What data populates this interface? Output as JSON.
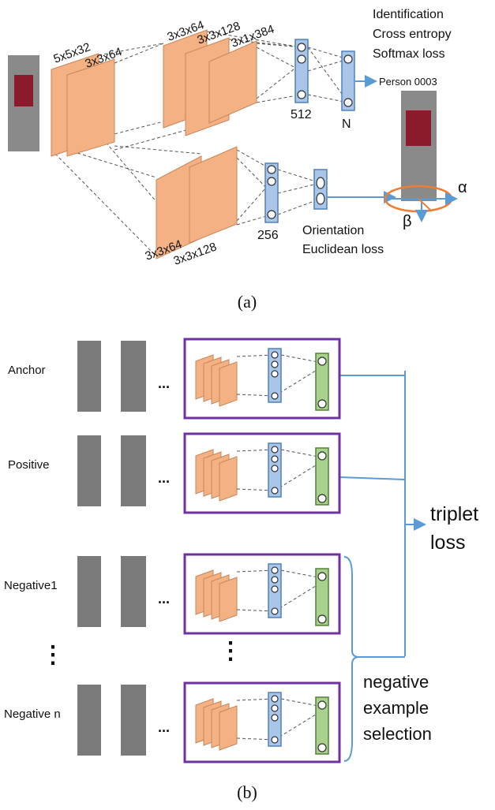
{
  "panel_a": {
    "conv_labels_top": [
      "5x5x32",
      "3x3x64",
      "3x3x64",
      "3x3x128",
      "3x1x384"
    ],
    "conv_labels_bottom": [
      "3x3x64",
      "3x3x128"
    ],
    "fc_labels": [
      "512",
      "N",
      "256"
    ],
    "identification": [
      "Identification",
      "Cross entropy",
      "Softmax loss"
    ],
    "person_label": "Person 0003",
    "angle_labels": [
      "α",
      "β"
    ],
    "orientation": [
      "Orientation",
      "Euclidean loss"
    ],
    "caption": "(a)"
  },
  "panel_b": {
    "rows": [
      {
        "label": "Anchor",
        "ellipsis": "..."
      },
      {
        "label": "Positive",
        "ellipsis": "..."
      },
      {
        "label": "Negative1",
        "ellipsis": "..."
      },
      {
        "label": "Negative n",
        "ellipsis": "..."
      }
    ],
    "vertical_ellipses": [
      "⋮",
      "⋮"
    ],
    "triplet": [
      "triplet",
      "loss"
    ],
    "negative": [
      "negative",
      "example",
      "selection"
    ],
    "caption": "(b)"
  }
}
